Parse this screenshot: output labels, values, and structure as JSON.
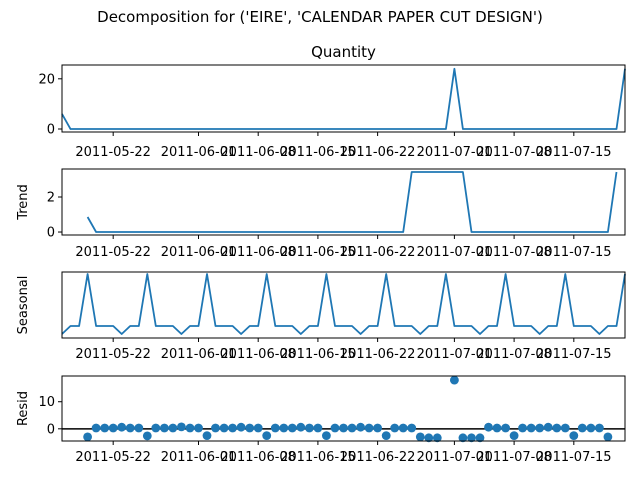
{
  "figure": {
    "suptitle": "Decomposition for ('EIRE', 'CALENDAR PAPER CUT DESIGN')"
  },
  "chart_data": [
    {
      "type": "line",
      "title": "Quantity",
      "ylabel": "",
      "color": "#1f77b4",
      "x_start": "2011-05-16",
      "x_end": "2011-07-21",
      "x_ticks": [
        "2011-05-22",
        "2011-06-01",
        "2011-06-08",
        "2011-06-15",
        "2011-06-22",
        "2011-07-01",
        "2011-07-08",
        "2011-07-15"
      ],
      "xlim": [
        "2011-05-16",
        "2011-07-21"
      ],
      "ylim": [
        -1.2,
        25.5
      ],
      "y_ticks": [
        0,
        20
      ],
      "series": [
        {
          "points": [
            [
              "2011-05-16",
              6
            ],
            [
              "2011-05-17",
              0
            ],
            [
              "2011-06-30",
              0
            ],
            [
              "2011-07-01",
              24
            ],
            [
              "2011-07-02",
              0
            ],
            [
              "2011-07-20",
              0
            ],
            [
              "2011-07-21",
              24
            ]
          ]
        }
      ]
    },
    {
      "type": "line",
      "title": "",
      "ylabel": "Trend",
      "color": "#1f77b4",
      "x_ticks": [
        "2011-05-22",
        "2011-06-01",
        "2011-06-08",
        "2011-06-15",
        "2011-06-22",
        "2011-07-01",
        "2011-07-08",
        "2011-07-15"
      ],
      "xlim": [
        "2011-05-16",
        "2011-07-21"
      ],
      "ylim": [
        -0.17,
        3.6
      ],
      "y_ticks": [
        0,
        2
      ],
      "series": [
        {
          "points": [
            [
              "2011-05-19",
              0.86
            ],
            [
              "2011-05-20",
              0
            ],
            [
              "2011-06-25",
              0
            ],
            [
              "2011-06-26",
              3.43
            ],
            [
              "2011-07-02",
              3.43
            ],
            [
              "2011-07-03",
              0
            ],
            [
              "2011-07-15",
              0
            ],
            [
              "2011-07-16",
              0
            ],
            [
              "2011-07-17",
              0
            ],
            [
              "2011-07-18",
              0
            ],
            [
              "2011-07-19",
              0
            ],
            [
              "2011-07-20",
              3.43
            ]
          ]
        }
      ]
    },
    {
      "type": "line",
      "title": "",
      "ylabel": "Seasonal",
      "color": "#1f77b4",
      "x_ticks": [
        "2011-05-22",
        "2011-06-01",
        "2011-06-08",
        "2011-06-15",
        "2011-06-22",
        "2011-07-01",
        "2011-07-08",
        "2011-07-15"
      ],
      "xlim": [
        "2011-05-16",
        "2011-07-21"
      ],
      "ylim": [
        -0.9,
        2.4
      ],
      "y_ticks": [],
      "series": [
        {
          "period_days": 7,
          "first_date": "2011-05-16",
          "pattern": [
            -0.7,
            -0.3,
            -0.3,
            2.3,
            -0.3,
            -0.3,
            -0.3
          ],
          "variant_pattern": [
            -0.3,
            -0.7,
            -0.3,
            -0.3,
            -0.3,
            -0.3,
            2.3
          ]
        }
      ]
    },
    {
      "type": "scatter",
      "title": "",
      "ylabel": "Resid",
      "color": "#1f77b4",
      "x_ticks": [
        "2011-05-22",
        "2011-06-01",
        "2011-06-08",
        "2011-06-15",
        "2011-06-22",
        "2011-07-01",
        "2011-07-08",
        "2011-07-15"
      ],
      "xlim": [
        "2011-05-16",
        "2011-07-21"
      ],
      "ylim": [
        -4.5,
        19.5
      ],
      "y_ticks": [
        0,
        10
      ],
      "zero_line": true,
      "series": [
        {
          "points": [
            [
              "2011-05-19",
              -3.0
            ],
            [
              "2011-05-20",
              0.3
            ],
            [
              "2011-05-21",
              0.3
            ],
            [
              "2011-05-22",
              0.3
            ],
            [
              "2011-05-23",
              0.6
            ],
            [
              "2011-05-24",
              0.3
            ],
            [
              "2011-05-25",
              0.3
            ],
            [
              "2011-05-26",
              -2.6
            ],
            [
              "2011-05-27",
              0.3
            ],
            [
              "2011-05-28",
              0.3
            ],
            [
              "2011-05-29",
              0.3
            ],
            [
              "2011-05-30",
              0.7
            ],
            [
              "2011-05-31",
              0.3
            ],
            [
              "2011-06-01",
              0.3
            ],
            [
              "2011-06-02",
              -2.5
            ],
            [
              "2011-06-03",
              0.3
            ],
            [
              "2011-06-04",
              0.3
            ],
            [
              "2011-06-05",
              0.3
            ],
            [
              "2011-06-06",
              0.6
            ],
            [
              "2011-06-07",
              0.3
            ],
            [
              "2011-06-08",
              0.3
            ],
            [
              "2011-06-09",
              -2.5
            ],
            [
              "2011-06-10",
              0.3
            ],
            [
              "2011-06-11",
              0.3
            ],
            [
              "2011-06-12",
              0.3
            ],
            [
              "2011-06-13",
              0.6
            ],
            [
              "2011-06-14",
              0.3
            ],
            [
              "2011-06-15",
              0.3
            ],
            [
              "2011-06-16",
              -2.5
            ],
            [
              "2011-06-17",
              0.3
            ],
            [
              "2011-06-18",
              0.3
            ],
            [
              "2011-06-19",
              0.3
            ],
            [
              "2011-06-20",
              0.6
            ],
            [
              "2011-06-21",
              0.3
            ],
            [
              "2011-06-22",
              0.3
            ],
            [
              "2011-06-23",
              -2.5
            ],
            [
              "2011-06-24",
              0.3
            ],
            [
              "2011-06-25",
              0.3
            ],
            [
              "2011-06-26",
              0.3
            ],
            [
              "2011-06-27",
              -3.0
            ],
            [
              "2011-06-28",
              -3.3
            ],
            [
              "2011-06-29",
              -3.3
            ],
            [
              "2011-07-01",
              18.0
            ],
            [
              "2011-07-02",
              -3.3
            ],
            [
              "2011-07-03",
              -3.3
            ],
            [
              "2011-07-04",
              -3.3
            ],
            [
              "2011-07-05",
              0.6
            ],
            [
              "2011-07-06",
              0.3
            ],
            [
              "2011-07-07",
              0.3
            ],
            [
              "2011-07-08",
              -2.5
            ],
            [
              "2011-07-09",
              0.3
            ],
            [
              "2011-07-10",
              0.3
            ],
            [
              "2011-07-11",
              0.3
            ],
            [
              "2011-07-12",
              0.6
            ],
            [
              "2011-07-13",
              0.3
            ],
            [
              "2011-07-14",
              0.3
            ],
            [
              "2011-07-15",
              -2.5
            ],
            [
              "2011-07-16",
              0.3
            ],
            [
              "2011-07-17",
              0.3
            ],
            [
              "2011-07-18",
              0.3
            ],
            [
              "2011-07-19",
              -3.0
            ]
          ]
        }
      ]
    }
  ]
}
